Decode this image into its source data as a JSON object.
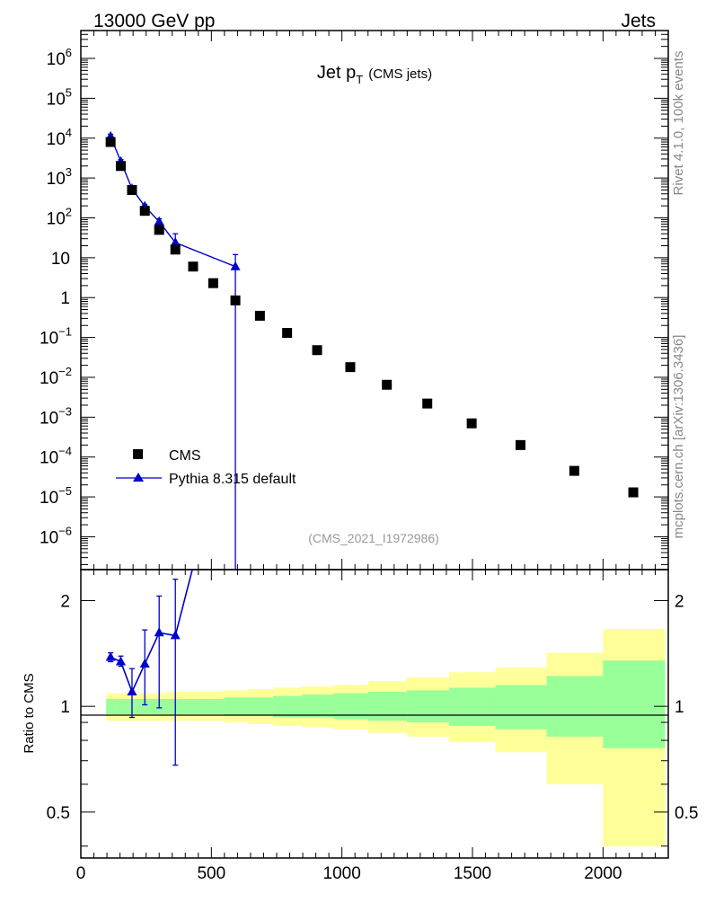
{
  "header": {
    "left": "13000 GeV pp",
    "right": "Jets"
  },
  "side_labels": {
    "rivet": "Rivet 4.1.0,  100k events",
    "mcplots": "mcplots.cern.ch [arXiv:1306.3436]"
  },
  "chart_data": {
    "type": "scatter",
    "title": "Jet p",
    "title_sub": "T",
    "title_suffix": "(CMS jets)",
    "analysis_id": "(CMS_2021_I1972986)",
    "xlabel": "",
    "xlim": [
      0,
      2250
    ],
    "x_ticks": [
      0,
      500,
      1000,
      1500,
      2000
    ],
    "x_tick_labels": [
      "0",
      "500",
      "1000",
      "1500",
      "2000"
    ],
    "main_panel": {
      "yscale": "log",
      "ylim": [
        1.5e-07,
        5000000.0
      ],
      "y_tick_labels": [
        {
          "value": 1000000.0,
          "base": "10",
          "exp": "6"
        },
        {
          "value": 100000.0,
          "base": "10",
          "exp": "5"
        },
        {
          "value": 10000.0,
          "base": "10",
          "exp": "4"
        },
        {
          "value": 1000.0,
          "base": "10",
          "exp": "3"
        },
        {
          "value": 100,
          "base": "10",
          "exp": "2"
        },
        {
          "value": 10,
          "base": "10",
          "exp": ""
        },
        {
          "value": 1,
          "base": "1",
          "exp": ""
        },
        {
          "value": 0.1,
          "base": "10",
          "exp": "−1"
        },
        {
          "value": 0.01,
          "base": "10",
          "exp": "−2"
        },
        {
          "value": 0.001,
          "base": "10",
          "exp": "−3"
        },
        {
          "value": 0.0001,
          "base": "10",
          "exp": "−4"
        },
        {
          "value": 1e-05,
          "base": "10",
          "exp": "−5"
        },
        {
          "value": 1e-06,
          "base": "10",
          "exp": "−6"
        }
      ],
      "series": [
        {
          "name": "CMS",
          "style": "square",
          "color": "#000000",
          "x": [
            114,
            153,
            196,
            245,
            300,
            362,
            430,
            507,
            592,
            686,
            790,
            905,
            1032,
            1172,
            1327,
            1497,
            1684,
            1890,
            2116
          ],
          "y": [
            8000,
            2000,
            500,
            150,
            50,
            16,
            6,
            2.3,
            0.85,
            0.35,
            0.13,
            0.048,
            0.018,
            0.0065,
            0.0022,
            0.0007,
            0.0002,
            4.5e-05,
            1.3e-05
          ]
        },
        {
          "name": "Pythia 8.315 default",
          "style": "triangle",
          "color": "#0000cc",
          "x": [
            114,
            153,
            196,
            245,
            300,
            362,
            592
          ],
          "y": [
            11000,
            2600,
            540,
            195,
            80,
            24,
            6
          ],
          "err_lo": [
            9800,
            2400,
            500,
            175,
            65,
            15,
            0
          ],
          "err_hi": [
            12500,
            2900,
            600,
            215,
            95,
            40,
            12
          ]
        }
      ],
      "legend_position": "lower-left"
    },
    "ratio_panel": {
      "ylabel": "Ratio to CMS",
      "yscale": "log",
      "ylim": [
        0.37,
        2.45
      ],
      "y_tick_labels": [
        {
          "value": 2,
          "label": "2"
        },
        {
          "value": 1,
          "label": "1"
        },
        {
          "value": 0.5,
          "label": "0.5"
        }
      ],
      "bin_edges": [
        97,
        133,
        174,
        220,
        272,
        330,
        395,
        468,
        548,
        638,
        737,
        846,
        967,
        1101,
        1248,
        1410,
        1588,
        1784,
        2000,
        2238
      ],
      "green_lo": [
        0.95,
        0.95,
        0.95,
        0.95,
        0.95,
        0.95,
        0.95,
        0.95,
        0.94,
        0.94,
        0.93,
        0.93,
        0.92,
        0.91,
        0.9,
        0.88,
        0.86,
        0.82,
        0.76
      ],
      "green_hi": [
        1.05,
        1.05,
        1.05,
        1.05,
        1.05,
        1.05,
        1.05,
        1.05,
        1.06,
        1.06,
        1.07,
        1.08,
        1.09,
        1.1,
        1.11,
        1.13,
        1.15,
        1.22,
        1.35
      ],
      "yellow_lo": [
        0.91,
        0.91,
        0.91,
        0.91,
        0.91,
        0.91,
        0.91,
        0.91,
        0.9,
        0.89,
        0.88,
        0.87,
        0.86,
        0.84,
        0.82,
        0.79,
        0.74,
        0.6,
        0.4
      ],
      "yellow_hi": [
        1.09,
        1.09,
        1.09,
        1.09,
        1.09,
        1.1,
        1.1,
        1.1,
        1.11,
        1.12,
        1.13,
        1.14,
        1.15,
        1.18,
        1.21,
        1.25,
        1.29,
        1.42,
        1.66
      ],
      "ratio_series": {
        "name": "Pythia 8.315 default",
        "x": [
          114,
          153,
          196,
          245,
          300,
          362
        ],
        "y": [
          1.38,
          1.34,
          1.1,
          1.32,
          1.62,
          1.59
        ],
        "err_lo": [
          1.34,
          1.3,
          0.93,
          1.01,
          0.99,
          0.68
        ],
        "err_hi": [
          1.42,
          1.39,
          1.28,
          1.65,
          2.06,
          2.3
        ],
        "continues_to": {
          "x": 430,
          "y": 2.5
        }
      }
    }
  }
}
